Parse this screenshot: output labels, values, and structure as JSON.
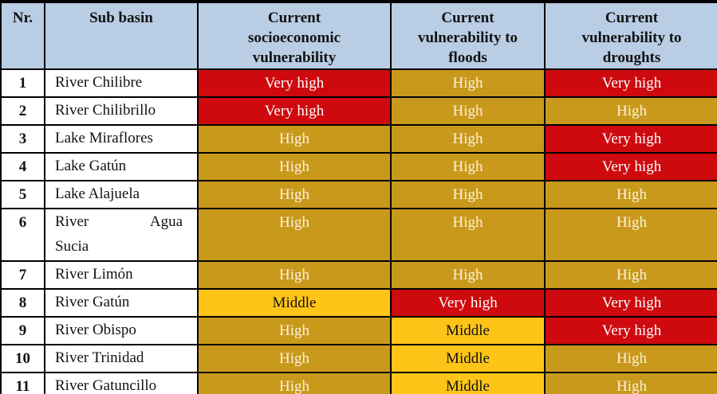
{
  "chart_data": {
    "type": "table",
    "columns": [
      "Nr.",
      "Sub basin",
      "Current\nsocioeconomic\nvulnerability",
      "Current\nvulnerability to\nfloods",
      "Current\nvulnerability to\ndroughts"
    ],
    "rows": [
      [
        "1",
        "River Chilibre",
        "Very high",
        "High",
        "Very high"
      ],
      [
        "2",
        "River Chilibrillo",
        "Very high",
        "High",
        "High"
      ],
      [
        "3",
        "Lake Miraflores",
        "High",
        "High",
        "Very high"
      ],
      [
        "4",
        "Lake Gatún",
        "High",
        "High",
        "Very high"
      ],
      [
        "5",
        "Lake Alajuela",
        "High",
        "High",
        "High"
      ],
      [
        "6",
        "River Agua Sucia",
        "High",
        "High",
        "High"
      ],
      [
        "7",
        "River Limón",
        "High",
        "High",
        "High"
      ],
      [
        "8",
        "River Gatún",
        "Middle",
        "Very high",
        "Very high"
      ],
      [
        "9",
        "River Obispo",
        "High",
        "Middle",
        "Very high"
      ],
      [
        "10",
        "River Trinidad",
        "High",
        "Middle",
        "High"
      ],
      [
        "11",
        "River Gatuncillo",
        "High",
        "Middle",
        "High"
      ]
    ],
    "value_levels": [
      "Middle",
      "High",
      "Very high"
    ],
    "layout": {
      "grid": "full-borders",
      "legend_position": "none",
      "cell_color_encodes": "vulnerability level",
      "tall_row_nr": "6",
      "tall_row_wrap_word": "Sucia"
    }
  },
  "colors": {
    "header_bg": "#B9CDE4",
    "very_high_bg": "#CE0A0E",
    "very_high_text": "#FFFFFF",
    "high_bg": "#C9991B",
    "high_text": "#F8F2DC",
    "middle_bg": "#FFC418",
    "middle_text": "#121212",
    "border": "#000000"
  }
}
